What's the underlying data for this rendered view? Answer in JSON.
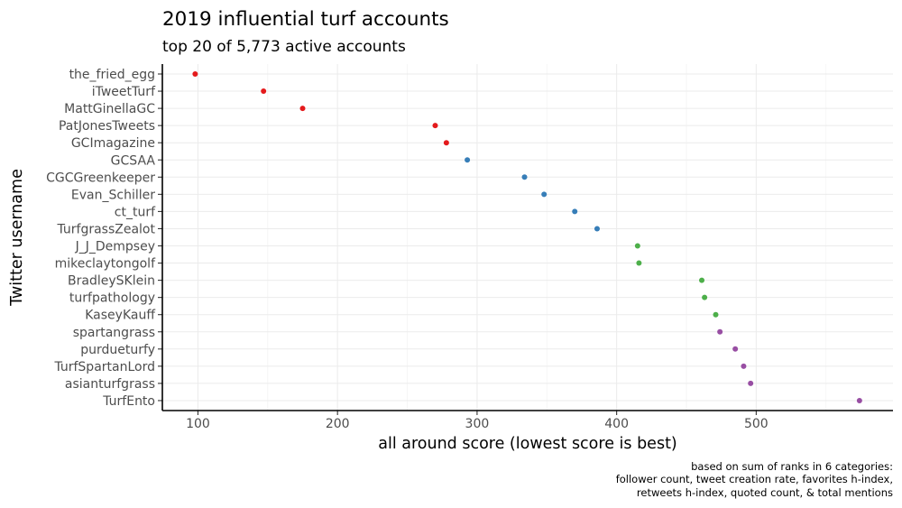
{
  "chart_data": {
    "type": "scatter",
    "title": "2019 influential turf accounts",
    "subtitle": "top 20 of 5,773 active accounts",
    "xlabel": "all around score (lowest score is best)",
    "ylabel": "Twitter username",
    "xlim": [
      74.5,
      598
    ],
    "xticks": [
      100,
      200,
      300,
      400,
      500
    ],
    "xminor": [
      150,
      250,
      350,
      450,
      550
    ],
    "grid": true,
    "legend": "none",
    "caption": [
      "based on sum of ranks in 6 categories:",
      "follower count, tweet creation rate, favorites h-index,",
      "retweets h-index, quoted count, & total mentions"
    ],
    "colors": {
      "group1": "#E41A1C",
      "group2": "#377EB8",
      "group3": "#4DAF4A",
      "group4": "#984EA3"
    },
    "points": [
      {
        "username": "the_fried_egg",
        "score": 98,
        "group": "group1"
      },
      {
        "username": "iTweetTurf",
        "score": 147,
        "group": "group1"
      },
      {
        "username": "MattGinellaGC",
        "score": 175,
        "group": "group1"
      },
      {
        "username": "PatJonesTweets",
        "score": 270,
        "group": "group1"
      },
      {
        "username": "GCImagazine",
        "score": 278,
        "group": "group1"
      },
      {
        "username": "GCSAA",
        "score": 293,
        "group": "group2"
      },
      {
        "username": "CGCGreenkeeper",
        "score": 334,
        "group": "group2"
      },
      {
        "username": "Evan_Schiller",
        "score": 348,
        "group": "group2"
      },
      {
        "username": "ct_turf",
        "score": 370,
        "group": "group2"
      },
      {
        "username": "TurfgrassZealot",
        "score": 386,
        "group": "group2"
      },
      {
        "username": "J_J_Dempsey",
        "score": 415,
        "group": "group3"
      },
      {
        "username": "mikeclaytongolf",
        "score": 416,
        "group": "group3"
      },
      {
        "username": "BradleySKlein",
        "score": 461,
        "group": "group3"
      },
      {
        "username": "turfpathology",
        "score": 463,
        "group": "group3"
      },
      {
        "username": "KaseyKauff",
        "score": 471,
        "group": "group3"
      },
      {
        "username": "spartangrass",
        "score": 474,
        "group": "group4"
      },
      {
        "username": "purdueturfy",
        "score": 485,
        "group": "group4"
      },
      {
        "username": "TurfSpartanLord",
        "score": 491,
        "group": "group4"
      },
      {
        "username": "asianturfgrass",
        "score": 496,
        "group": "group4"
      },
      {
        "username": "TurfEnto",
        "score": 574,
        "group": "group4"
      }
    ]
  }
}
